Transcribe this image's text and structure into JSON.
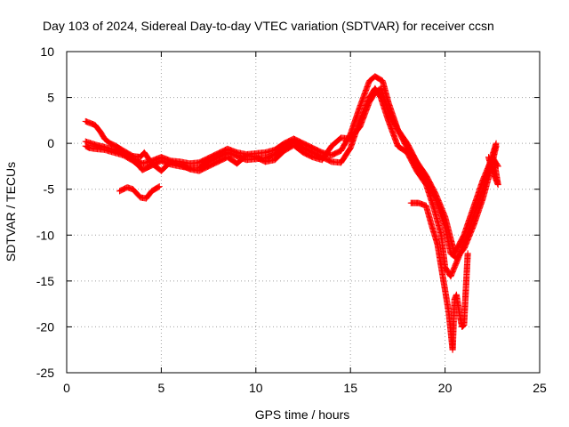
{
  "chart_data": {
    "type": "scatter",
    "title": "Day 103 of 2024, Sidereal Day-to-day VTEC variation (SDTVAR) for receiver ccsn",
    "xlabel": "GPS time / hours",
    "ylabel": "SDTVAR / TECUs",
    "xlim": [
      0,
      25
    ],
    "ylim": [
      -25,
      10
    ],
    "xticks": [
      "0",
      "5",
      "10",
      "15",
      "20",
      "25"
    ],
    "yticks": [
      "-25",
      "-20",
      "-15",
      "-10",
      "-5",
      "0",
      "5",
      "10"
    ],
    "grid": true,
    "legend": "none",
    "marker": "plus",
    "color": "#ff0000",
    "series": [
      {
        "values": [
          [
            1.0,
            -0.3
          ],
          [
            1.2,
            -0.5
          ],
          [
            1.5,
            -0.6
          ],
          [
            2.0,
            -0.7
          ],
          [
            2.5,
            -1.0
          ],
          [
            3.0,
            -1.3
          ],
          [
            3.5,
            -1.9
          ],
          [
            3.8,
            -2.4
          ],
          [
            4.0,
            -2.9
          ],
          [
            4.3,
            -2.6
          ],
          [
            4.6,
            -2.3
          ],
          [
            5.0,
            -1.9
          ],
          [
            5.5,
            -2.3
          ],
          [
            6.0,
            -2.5
          ],
          [
            6.5,
            -2.7
          ],
          [
            7.0,
            -2.7
          ],
          [
            7.5,
            -2.0
          ],
          [
            8.0,
            -1.5
          ],
          [
            8.5,
            -1.0
          ],
          [
            9.0,
            -1.4
          ],
          [
            9.5,
            -1.8
          ],
          [
            10.0,
            -1.7
          ],
          [
            10.5,
            -1.6
          ],
          [
            11.0,
            -1.2
          ],
          [
            11.5,
            -0.5
          ],
          [
            12.0,
            0.2
          ],
          [
            12.5,
            -0.5
          ],
          [
            13.0,
            -1.0
          ],
          [
            13.5,
            -1.5
          ],
          [
            14.0,
            -2.0
          ],
          [
            14.5,
            -2.1
          ],
          [
            15.0,
            -0.5
          ],
          [
            15.5,
            2.5
          ],
          [
            16.0,
            5.0
          ],
          [
            16.3,
            6.0
          ],
          [
            16.6,
            5.0
          ],
          [
            17.0,
            2.5
          ],
          [
            17.5,
            -0.3
          ],
          [
            18.0,
            -1.0
          ],
          [
            18.5,
            -3.0
          ],
          [
            19.0,
            -4.5
          ],
          [
            19.4,
            -7.0
          ],
          [
            19.8,
            -10.0
          ],
          [
            20.0,
            -13.5
          ],
          [
            20.3,
            -14.5
          ],
          [
            20.6,
            -13.0
          ],
          [
            21.0,
            -11.0
          ],
          [
            21.5,
            -8.0
          ],
          [
            22.0,
            -5.0
          ],
          [
            22.4,
            -2.0
          ],
          [
            22.7,
            0.0
          ]
        ]
      },
      {
        "values": [
          [
            1.0,
            0.2
          ],
          [
            1.3,
            0.0
          ],
          [
            1.6,
            -0.2
          ],
          [
            2.0,
            -0.4
          ],
          [
            2.5,
            -0.7
          ],
          [
            3.0,
            -1.1
          ],
          [
            3.5,
            -1.7
          ],
          [
            4.0,
            -2.2
          ],
          [
            4.5,
            -1.9
          ],
          [
            5.0,
            -1.5
          ],
          [
            5.5,
            -1.9
          ],
          [
            6.0,
            -2.0
          ],
          [
            6.5,
            -2.2
          ],
          [
            7.0,
            -2.1
          ],
          [
            7.5,
            -1.6
          ],
          [
            8.0,
            -1.1
          ],
          [
            8.5,
            -0.6
          ],
          [
            9.0,
            -1.0
          ],
          [
            9.5,
            -1.2
          ],
          [
            10.0,
            -1.1
          ],
          [
            10.5,
            -1.0
          ],
          [
            11.0,
            -0.7
          ],
          [
            11.5,
            0.0
          ],
          [
            12.0,
            0.5
          ],
          [
            12.5,
            0.0
          ],
          [
            13.0,
            -0.5
          ],
          [
            13.5,
            -1.0
          ],
          [
            14.0,
            -1.3
          ],
          [
            14.5,
            -0.8
          ],
          [
            15.0,
            1.0
          ],
          [
            15.5,
            4.0
          ],
          [
            16.0,
            6.8
          ],
          [
            16.3,
            7.3
          ],
          [
            16.7,
            6.8
          ],
          [
            17.0,
            4.5
          ],
          [
            17.5,
            1.5
          ],
          [
            18.0,
            -0.5
          ],
          [
            18.5,
            -2.0
          ],
          [
            19.0,
            -4.0
          ],
          [
            19.5,
            -6.0
          ],
          [
            20.0,
            -9.0
          ],
          [
            20.3,
            -12.0
          ],
          [
            20.6,
            -12.5
          ],
          [
            21.0,
            -11.5
          ],
          [
            21.5,
            -9.0
          ],
          [
            22.0,
            -6.0
          ],
          [
            22.4,
            -3.0
          ],
          [
            22.7,
            -0.3
          ]
        ]
      },
      {
        "values": [
          [
            1.0,
            2.4
          ],
          [
            1.5,
            2.0
          ],
          [
            1.8,
            1.2
          ],
          [
            2.0,
            0.5
          ],
          [
            2.3,
            0.0
          ],
          [
            2.6,
            -0.3
          ],
          [
            3.0,
            -0.8
          ],
          [
            3.5,
            -1.4
          ],
          [
            3.9,
            -1.5
          ],
          [
            4.1,
            -1.0
          ],
          [
            4.5,
            -2.2
          ],
          [
            5.0,
            -3.0
          ],
          [
            5.5,
            -2.0
          ],
          [
            6.0,
            -2.3
          ],
          [
            6.5,
            -2.8
          ],
          [
            7.0,
            -3.0
          ],
          [
            7.5,
            -2.5
          ],
          [
            8.0,
            -2.0
          ],
          [
            8.5,
            -1.5
          ],
          [
            9.0,
            -2.2
          ],
          [
            9.5,
            -1.3
          ],
          [
            10.0,
            -1.5
          ],
          [
            10.5,
            -2.0
          ],
          [
            11.0,
            -1.8
          ],
          [
            11.5,
            -0.8
          ],
          [
            12.0,
            -0.2
          ],
          [
            12.5,
            -1.0
          ],
          [
            13.0,
            -1.5
          ],
          [
            13.5,
            -1.8
          ],
          [
            14.0,
            -0.3
          ],
          [
            14.5,
            0.6
          ],
          [
            15.0,
            0.5
          ],
          [
            15.5,
            1.8
          ],
          [
            16.0,
            4.5
          ],
          [
            16.3,
            5.5
          ],
          [
            16.6,
            6.0
          ],
          [
            17.0,
            3.5
          ],
          [
            17.5,
            1.5
          ],
          [
            18.0,
            0.0
          ],
          [
            18.5,
            -2.0
          ],
          [
            19.0,
            -3.5
          ],
          [
            19.5,
            -5.5
          ],
          [
            20.0,
            -8.0
          ],
          [
            20.5,
            -12.0
          ],
          [
            21.0,
            -10.0
          ],
          [
            21.5,
            -7.0
          ],
          [
            22.0,
            -4.0
          ],
          [
            22.5,
            -1.5
          ],
          [
            22.8,
            -2.5
          ]
        ]
      },
      {
        "values": [
          [
            2.8,
            -5.2
          ],
          [
            3.2,
            -4.8
          ],
          [
            3.5,
            -5.0
          ],
          [
            3.9,
            -5.9
          ],
          [
            4.2,
            -6.0
          ],
          [
            4.5,
            -5.2
          ],
          [
            4.9,
            -4.7
          ]
        ]
      },
      {
        "values": [
          [
            18.2,
            -6.5
          ],
          [
            18.6,
            -6.5
          ],
          [
            19.0,
            -6.8
          ],
          [
            19.3,
            -9.0
          ],
          [
            19.6,
            -11.0
          ],
          [
            19.8,
            -13.5
          ],
          [
            20.0,
            -16.0
          ],
          [
            20.2,
            -18.5
          ],
          [
            20.3,
            -20.5
          ],
          [
            20.4,
            -22.5
          ],
          [
            20.5,
            -17.0
          ],
          [
            20.6,
            -16.5
          ],
          [
            20.8,
            -19.0
          ],
          [
            20.9,
            -20.0
          ],
          [
            21.0,
            -19.8
          ],
          [
            21.2,
            -12.0
          ]
        ]
      },
      {
        "values": [
          [
            22.3,
            -1.5
          ],
          [
            22.5,
            -3.0
          ],
          [
            22.7,
            -4.0
          ],
          [
            22.8,
            -4.5
          ],
          [
            22.6,
            -2.0
          ]
        ]
      }
    ]
  }
}
